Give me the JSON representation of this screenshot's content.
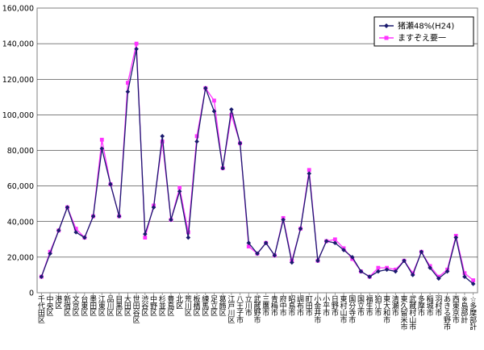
{
  "chart_data": {
    "type": "line",
    "title": "",
    "xlabel": "",
    "ylabel": "",
    "ylim": [
      0,
      160000
    ],
    "yticks": [
      0,
      20000,
      40000,
      60000,
      80000,
      100000,
      120000,
      140000,
      160000
    ],
    "ytick_labels": [
      "0",
      "20,000",
      "40,000",
      "60,000",
      "80,000",
      "100,000",
      "120,000",
      "140,000",
      "160,000"
    ],
    "grid": true,
    "legend_position": "top-right",
    "categories": [
      "千代田区",
      "中央区",
      "港区",
      "新宿区",
      "文京区",
      "台東区",
      "墨田区",
      "江東区",
      "品川区",
      "目黒区",
      "大田区",
      "世田谷区",
      "渋谷区",
      "中野区",
      "杉並区",
      "豊島区",
      "北区",
      "荒川区",
      "板橋区",
      "練馬区",
      "足立区",
      "葛飾区",
      "江戸川区",
      "八王子市",
      "立川市",
      "武蔵野市",
      "三鷹市",
      "青梅市",
      "府中市",
      "昭島市",
      "調布市",
      "町田市",
      "小金井市",
      "小平市",
      "日野市",
      "東村山市",
      "国分寺市",
      "国立市",
      "福生市",
      "狛江市",
      "東大和市",
      "清瀬市",
      "東久留米市",
      "武蔵村山市",
      "多摩市",
      "稲城市",
      "羽村市",
      "あきる野市",
      "西東京市",
      "※島部計",
      "☆多摩部計"
    ],
    "series": [
      {
        "name": "猪瀬48%(H24)",
        "color": "#1a1a6e",
        "marker": "diamond",
        "values": [
          9000,
          22000,
          35000,
          48000,
          34000,
          31000,
          43000,
          81000,
          61000,
          43000,
          113000,
          137000,
          33000,
          48000,
          88000,
          41000,
          57000,
          31000,
          85000,
          115000,
          102000,
          70000,
          103000,
          84000,
          28000,
          22000,
          28000,
          21000,
          41000,
          17000,
          36000,
          67000,
          18000,
          29000,
          28000,
          24000,
          20000,
          12000,
          9000,
          12000,
          13000,
          12000,
          18000,
          10000,
          23000,
          14000,
          8000,
          12000,
          31000,
          9000,
          5000
        ]
      },
      {
        "name": "ますぞえ要一",
        "color": "#ff33ff",
        "marker": "square",
        "values": [
          9000,
          23000,
          35000,
          48000,
          36000,
          31000,
          43000,
          86000,
          61000,
          43000,
          118000,
          140000,
          31000,
          49000,
          85000,
          41000,
          59000,
          34000,
          88000,
          115000,
          108000,
          70000,
          100000,
          84000,
          26000,
          22000,
          28000,
          21000,
          42000,
          18000,
          36000,
          69000,
          18000,
          29000,
          30000,
          25000,
          19000,
          12000,
          9000,
          14000,
          14000,
          13000,
          18000,
          11000,
          23000,
          15000,
          9000,
          13000,
          32000,
          11000,
          7000
        ]
      }
    ]
  }
}
